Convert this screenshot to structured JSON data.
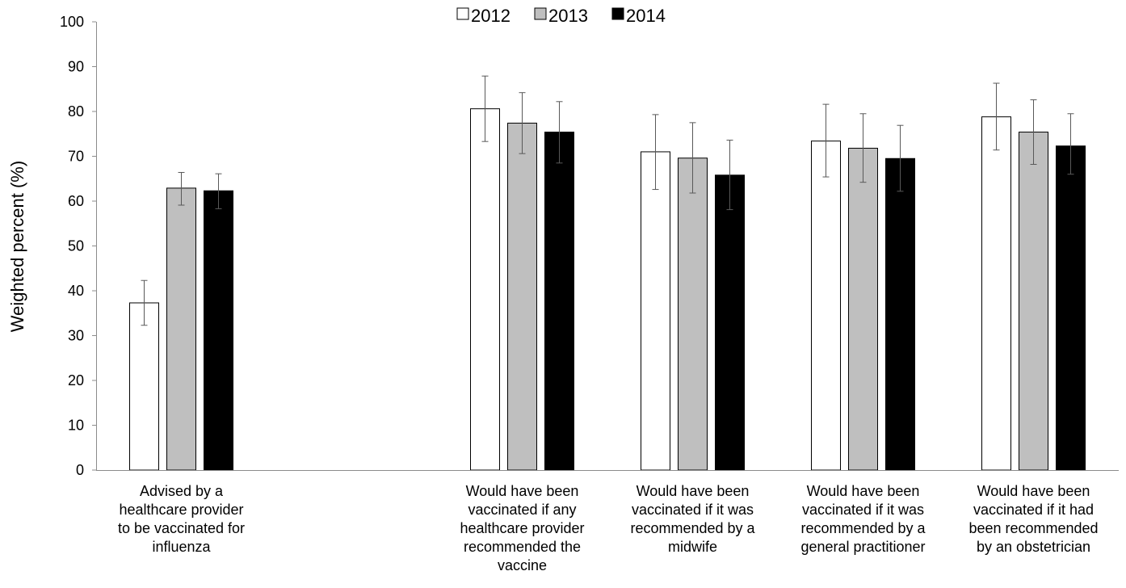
{
  "chart_data": {
    "type": "bar",
    "ylabel": "Weighted percent (%)",
    "ylim": [
      0,
      100
    ],
    "yticks": [
      0,
      10,
      20,
      30,
      40,
      50,
      60,
      70,
      80,
      90,
      100
    ],
    "legend_position": "top-center",
    "categories": [
      [
        "Advised by a",
        "healthcare provider",
        "to be vaccinated for",
        "influenza"
      ],
      [],
      [
        "Would have been",
        "vaccinated if any",
        "healthcare provider",
        "recommended the",
        "vaccine"
      ],
      [
        "Would have been",
        "vaccinated if it was",
        "recommended by a",
        "midwife"
      ],
      [
        "Would have been",
        "vaccinated if it was",
        "recommended by a",
        "general practitioner"
      ],
      [
        "Would have been",
        "vaccinated if it had",
        "been recommended",
        "by an obstetrician"
      ]
    ],
    "series": [
      {
        "name": "2012",
        "color": "#ffffff",
        "values": [
          37.3,
          null,
          80.6,
          71.0,
          73.4,
          78.8
        ],
        "error_low": [
          32.3,
          null,
          73.3,
          62.6,
          65.4,
          71.4
        ],
        "error_high": [
          42.3,
          null,
          87.9,
          79.3,
          81.6,
          86.3
        ]
      },
      {
        "name": "2013",
        "color": "#bfbfbf",
        "values": [
          62.9,
          null,
          77.4,
          69.6,
          71.8,
          75.4
        ],
        "error_low": [
          59.1,
          null,
          70.6,
          61.8,
          64.2,
          68.2
        ],
        "error_high": [
          66.4,
          null,
          84.2,
          77.5,
          79.5,
          82.6
        ]
      },
      {
        "name": "2014",
        "color": "#000000",
        "values": [
          62.3,
          null,
          75.4,
          65.8,
          69.5,
          72.3
        ],
        "error_low": [
          58.3,
          null,
          68.5,
          58.1,
          62.2,
          66.0
        ],
        "error_high": [
          66.1,
          null,
          82.2,
          73.6,
          76.9,
          79.5
        ]
      }
    ]
  }
}
